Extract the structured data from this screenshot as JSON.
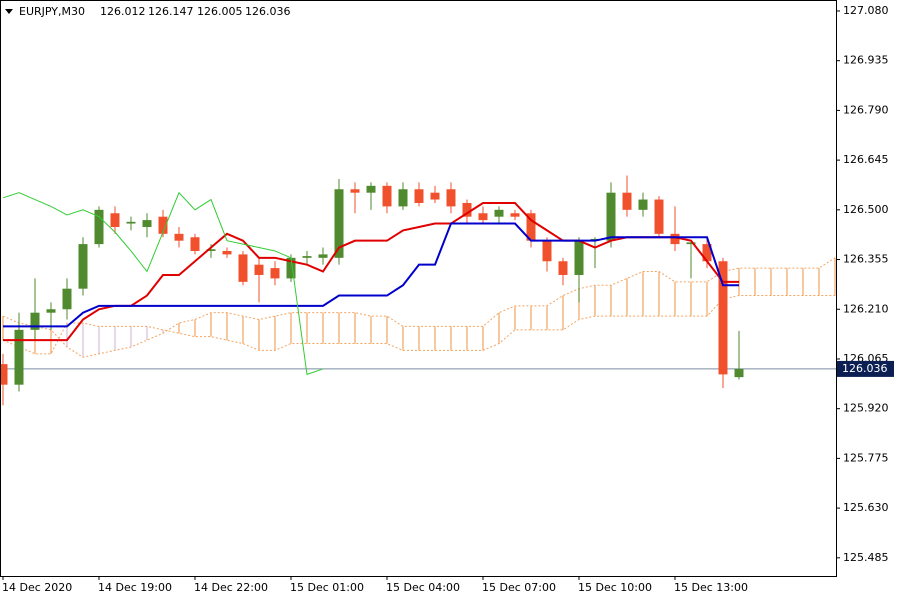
{
  "chart_data": {
    "type": "candlestick",
    "title": "EURJPY,M30",
    "categories": [
      "14 Dec 2020",
      null,
      null,
      null,
      null,
      null,
      "14 Dec 19:00",
      null,
      null,
      null,
      null,
      null,
      "14 Dec 22:00",
      null,
      null,
      null,
      null,
      null,
      "15 Dec 01:00",
      null,
      null,
      null,
      null,
      null,
      "15 Dec 04:00",
      null,
      null,
      null,
      null,
      null,
      "15 Dec 07:00",
      null,
      null,
      null,
      null,
      null,
      "15 Dec 10:00",
      null,
      null,
      null,
      null,
      null,
      "15 Dec 13:00",
      null,
      null,
      null,
      null,
      null,
      null,
      null,
      null,
      null,
      null
    ],
    "candles": {
      "open": [
        126.05,
        125.99,
        126.15,
        126.2,
        126.21,
        126.27,
        126.4,
        126.49,
        126.46,
        126.45,
        126.48,
        126.43,
        126.42,
        126.38,
        126.38,
        126.37,
        126.34,
        126.33,
        126.3,
        126.36,
        126.36,
        126.36,
        126.56,
        126.55,
        126.57,
        126.51,
        126.56,
        126.55,
        126.56,
        126.52,
        126.49,
        126.48,
        126.49,
        126.49,
        126.41,
        126.35,
        126.31,
        126.41,
        126.41,
        126.55,
        126.5,
        126.53,
        126.43,
        126.4,
        126.4,
        126.35,
        126.012,
        null,
        null,
        null,
        null,
        null,
        null
      ],
      "high": [
        126.08,
        126.2,
        126.3,
        126.23,
        126.3,
        126.42,
        126.51,
        126.51,
        126.48,
        126.49,
        126.5,
        126.45,
        126.43,
        126.4,
        126.39,
        126.38,
        126.36,
        126.35,
        126.37,
        126.38,
        126.39,
        126.59,
        126.58,
        126.58,
        126.58,
        126.58,
        126.58,
        126.57,
        126.58,
        126.53,
        126.51,
        126.51,
        126.5,
        126.5,
        126.42,
        126.36,
        126.42,
        126.42,
        126.58,
        126.6,
        126.55,
        126.54,
        126.51,
        126.41,
        126.42,
        126.36,
        126.147,
        null,
        null,
        null,
        null,
        null,
        null
      ],
      "low": [
        125.93,
        125.97,
        126.12,
        126.15,
        126.18,
        126.25,
        126.39,
        126.43,
        126.44,
        126.42,
        126.42,
        126.39,
        126.37,
        126.36,
        126.36,
        126.28,
        126.23,
        126.28,
        126.29,
        126.34,
        126.34,
        126.34,
        126.49,
        126.5,
        126.49,
        126.5,
        126.51,
        126.52,
        126.49,
        126.46,
        126.46,
        126.46,
        126.47,
        126.39,
        126.32,
        126.28,
        126.23,
        126.33,
        126.39,
        126.48,
        126.48,
        126.42,
        126.38,
        126.3,
        126.33,
        125.98,
        126.005,
        null,
        null,
        null,
        null,
        null,
        null
      ],
      "close": [
        125.99,
        126.15,
        126.2,
        126.21,
        126.27,
        126.4,
        126.5,
        126.45,
        126.465,
        126.47,
        126.43,
        126.41,
        126.38,
        126.385,
        126.37,
        126.29,
        126.31,
        126.3,
        126.36,
        126.365,
        126.37,
        126.56,
        126.55,
        126.57,
        126.51,
        126.56,
        126.52,
        126.53,
        126.51,
        126.48,
        126.47,
        126.5,
        126.48,
        126.41,
        126.35,
        126.31,
        126.41,
        126.415,
        126.55,
        126.5,
        126.53,
        126.43,
        126.4,
        126.405,
        126.35,
        126.02,
        126.036,
        null,
        null,
        null,
        null,
        null,
        null
      ]
    },
    "up_color": "#4f8a2e",
    "down_color": "#f0502c",
    "lines": [
      {
        "color": "#e00000",
        "width": 2,
        "values": [
          126.12,
          126.12,
          126.12,
          126.12,
          126.12,
          126.18,
          126.21,
          126.22,
          126.22,
          126.25,
          126.31,
          126.31,
          126.35,
          126.39,
          126.43,
          126.41,
          126.36,
          126.36,
          126.35,
          126.34,
          126.32,
          126.39,
          126.41,
          126.41,
          126.41,
          126.44,
          126.45,
          126.46,
          126.46,
          126.49,
          126.52,
          126.52,
          126.52,
          126.47,
          126.44,
          126.41,
          126.41,
          126.39,
          126.41,
          126.42,
          126.42,
          126.42,
          126.42,
          126.41,
          126.35,
          126.29,
          126.29,
          null,
          null,
          null,
          null,
          null,
          null
        ]
      },
      {
        "color": "#0000cc",
        "width": 2,
        "values": [
          126.16,
          126.16,
          126.16,
          126.16,
          126.16,
          126.2,
          126.22,
          126.22,
          126.22,
          126.22,
          126.22,
          126.22,
          126.22,
          126.22,
          126.22,
          126.22,
          126.22,
          126.22,
          126.22,
          126.22,
          126.22,
          126.25,
          126.25,
          126.25,
          126.25,
          126.28,
          126.34,
          126.34,
          126.46,
          126.46,
          126.46,
          126.46,
          126.46,
          126.41,
          126.41,
          126.41,
          126.41,
          126.41,
          126.42,
          126.42,
          126.42,
          126.42,
          126.42,
          126.42,
          126.42,
          126.28,
          126.28,
          null,
          null,
          null,
          null,
          null,
          null
        ]
      },
      {
        "color": "#33cc33",
        "width": 1,
        "values": [
          126.535,
          126.55,
          126.53,
          126.51,
          126.485,
          126.5,
          126.48,
          126.435,
          126.38,
          126.32,
          126.435,
          126.55,
          126.5,
          126.53,
          126.41,
          126.4,
          126.39,
          126.38,
          126.36,
          126.02,
          126.036,
          null,
          null,
          null,
          null,
          null,
          null,
          null,
          null,
          null,
          null,
          null,
          null,
          null,
          null,
          null,
          null,
          null,
          null,
          null,
          null,
          null,
          null,
          null,
          null,
          null,
          null,
          null,
          null,
          null,
          null,
          null,
          null
        ]
      }
    ],
    "cloud": {
      "span_a": [
        126.19,
        126.17,
        126.16,
        126.15,
        126.1,
        126.07,
        126.08,
        126.09,
        126.1,
        126.12,
        126.14,
        126.17,
        126.18,
        126.2,
        126.2,
        126.19,
        126.18,
        126.19,
        126.2,
        126.2,
        126.2,
        126.2,
        126.2,
        126.19,
        126.19,
        126.16,
        126.16,
        126.16,
        126.16,
        126.16,
        126.16,
        126.2,
        126.22,
        126.22,
        126.22,
        126.25,
        126.27,
        126.28,
        126.28,
        126.3,
        126.32,
        126.32,
        126.29,
        126.29,
        126.29,
        126.32,
        126.33,
        126.33,
        126.33,
        126.33,
        126.33,
        126.33,
        126.36
      ],
      "span_b": [
        126.12,
        126.1,
        126.08,
        126.08,
        126.17,
        126.17,
        126.16,
        126.16,
        126.16,
        126.16,
        126.15,
        126.14,
        126.13,
        126.13,
        126.12,
        126.11,
        126.09,
        126.09,
        126.11,
        126.11,
        126.11,
        126.11,
        126.11,
        126.11,
        126.11,
        126.09,
        126.09,
        126.09,
        126.09,
        126.09,
        126.09,
        126.11,
        126.15,
        126.15,
        126.15,
        126.15,
        126.18,
        126.19,
        126.19,
        126.19,
        126.19,
        126.19,
        126.19,
        126.19,
        126.19,
        126.24,
        126.25,
        126.25,
        126.25,
        126.25,
        126.25,
        126.25,
        126.25
      ],
      "up_color": "#f4a460",
      "down_color": "#d8bfd8"
    },
    "last_price_color": "#0b1f52",
    "ylim": [
      125.432,
      127.112
    ],
    "yticks": [
      {
        "value": 127.08,
        "label": "127.080"
      },
      126.935,
      {
        "value": 126.79,
        "label": "126.790"
      },
      126.645,
      {
        "value": 126.5,
        "label": "126.500"
      },
      126.355,
      {
        "value": 126.21,
        "label": "126.210"
      },
      126.065,
      {
        "value": 125.92,
        "label": "125.920"
      },
      125.775,
      {
        "value": 125.63,
        "label": "125.630"
      },
      125.485
    ]
  }
}
